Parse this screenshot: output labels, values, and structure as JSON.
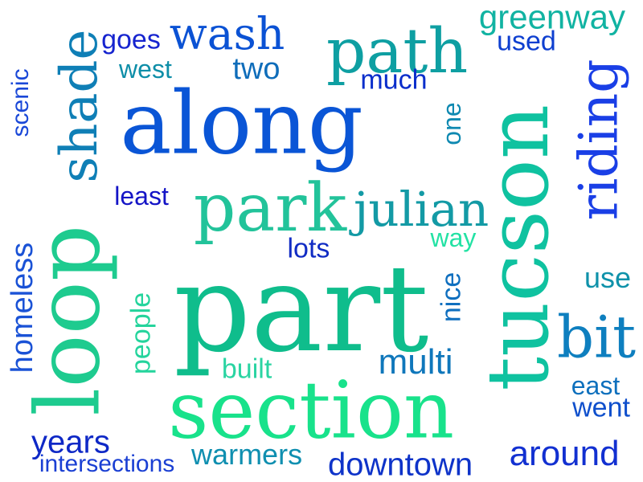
{
  "words": [
    {
      "id": "along",
      "text": "along",
      "color": "#0a55d6"
    },
    {
      "id": "part",
      "text": "part",
      "color": "#0fbd8c"
    },
    {
      "id": "section",
      "text": "section",
      "color": "#18e28b"
    },
    {
      "id": "tucson",
      "text": "tucson",
      "color": "#0fc2a0"
    },
    {
      "id": "loop",
      "text": "loop",
      "color": "#1ecb8f"
    },
    {
      "id": "path",
      "text": "path",
      "color": "#0e9fa2"
    },
    {
      "id": "park",
      "text": "park",
      "color": "#22c39a"
    },
    {
      "id": "shade",
      "text": "shade",
      "color": "#0f7fb6"
    },
    {
      "id": "riding",
      "text": "riding",
      "color": "#1a3fe6"
    },
    {
      "id": "wash",
      "text": "wash",
      "color": "#0b52d4"
    },
    {
      "id": "julian",
      "text": "julian",
      "color": "#139aa5"
    },
    {
      "id": "bit",
      "text": "bit",
      "color": "#0e7fbf"
    },
    {
      "id": "greenway",
      "text": "greenway",
      "color": "#11b3a2"
    },
    {
      "id": "goes",
      "text": "goes",
      "color": "#1624cf"
    },
    {
      "id": "used",
      "text": "used",
      "color": "#0e3fd0"
    },
    {
      "id": "west",
      "text": "west",
      "color": "#0e8ea8"
    },
    {
      "id": "two",
      "text": "two",
      "color": "#0f6dba"
    },
    {
      "id": "much",
      "text": "much",
      "color": "#0a2ecb"
    },
    {
      "id": "one",
      "text": "one",
      "color": "#0f89b1"
    },
    {
      "id": "scenic",
      "text": "scenic",
      "color": "#1a48d8"
    },
    {
      "id": "least",
      "text": "least",
      "color": "#1414c6"
    },
    {
      "id": "way",
      "text": "way",
      "color": "#23e2a4"
    },
    {
      "id": "lots",
      "text": "lots",
      "color": "#112cc4"
    },
    {
      "id": "homeless",
      "text": "homeless",
      "color": "#1a52d6"
    },
    {
      "id": "people",
      "text": "people",
      "color": "#24d49c"
    },
    {
      "id": "nice",
      "text": "nice",
      "color": "#0f6fbf"
    },
    {
      "id": "use",
      "text": "use",
      "color": "#0f92aa"
    },
    {
      "id": "built",
      "text": "built",
      "color": "#2ad4a2"
    },
    {
      "id": "multi",
      "text": "multi",
      "color": "#0f77bb"
    },
    {
      "id": "east",
      "text": "east",
      "color": "#0e70bd"
    },
    {
      "id": "went",
      "text": "went",
      "color": "#0f4fcc"
    },
    {
      "id": "years",
      "text": "years",
      "color": "#0e28c6"
    },
    {
      "id": "warmers",
      "text": "warmers",
      "color": "#0f8fb0"
    },
    {
      "id": "around",
      "text": "around",
      "color": "#1230d1"
    },
    {
      "id": "intersections",
      "text": "intersections",
      "color": "#1a3fd3"
    },
    {
      "id": "downtown",
      "text": "downtown",
      "color": "#0e33c9"
    }
  ]
}
